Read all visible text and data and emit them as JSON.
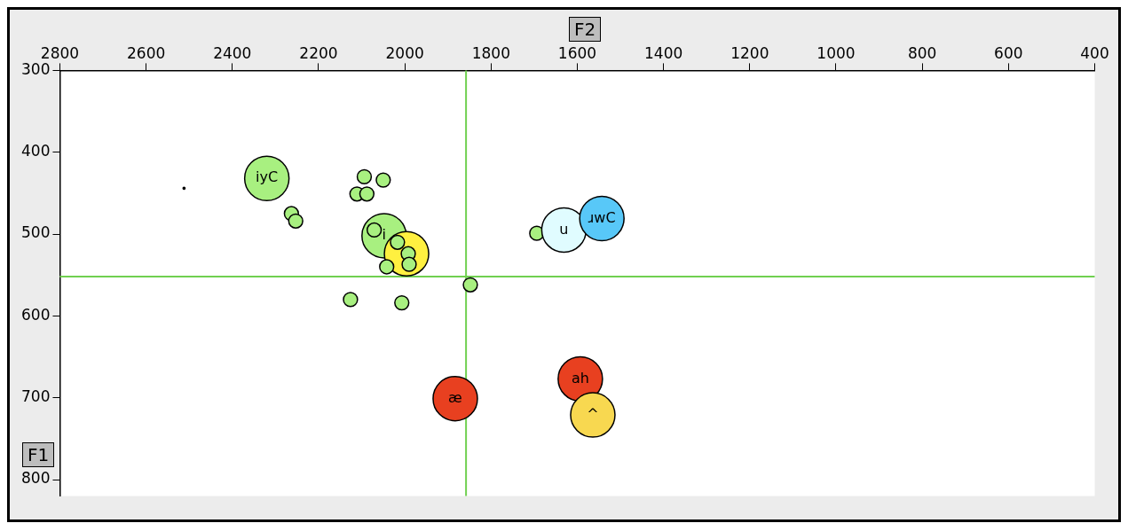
{
  "chart_data": {
    "type": "bubble",
    "xlabel": "F2",
    "ylabel": "F1",
    "x": [
      2512,
      2320,
      2048,
      1996,
      2094,
      2050,
      2111,
      2088,
      2263,
      2253,
      2071,
      2017,
      1992,
      1990,
      2042,
      2126,
      2007,
      1848,
      1694,
      1631,
      1543,
      1883,
      1593,
      1564
    ],
    "values": [
      444,
      432,
      502,
      524,
      430,
      434,
      451,
      451,
      475,
      484,
      495,
      510,
      524,
      537,
      540,
      580,
      584,
      562,
      499,
      495,
      481,
      701,
      677,
      721
    ],
    "sizes": [
      0.002,
      1,
      1,
      1,
      0.1,
      0.1,
      0.1,
      0.1,
      0.1,
      0.1,
      0.1,
      0.1,
      0.1,
      0.1,
      0.1,
      0.1,
      0.1,
      0.1,
      0.1,
      1,
      1,
      1,
      1,
      1
    ],
    "colors": [
      "#000000",
      "#a8f080",
      "#a8f080",
      "#fff040",
      "#a8f080",
      "#a8f080",
      "#a8f080",
      "#a8f080",
      "#a8f080",
      "#a8f080",
      "#a8f080",
      "#a8f080",
      "#a8f080",
      "#a8f080",
      "#a8f080",
      "#a8f080",
      "#a8f080",
      "#a8f080",
      "#a8f080",
      "#e0fcff",
      "#58c8f8",
      "#e84020",
      "#e84020",
      "#f8d850"
    ],
    "xlim": [
      2800,
      400
    ],
    "xticks": [
      2800,
      2600,
      2400,
      2200,
      2000,
      1800,
      1600,
      1400,
      1200,
      1000,
      800,
      600,
      400
    ],
    "ylim": [
      820,
      300
    ],
    "yticks": [
      300,
      400,
      500,
      600,
      700,
      800
    ],
    "ref_lines": [
      {
        "axis": "x",
        "value": 1858,
        "color": "#70d050"
      },
      {
        "axis": "y",
        "value": 552,
        "color": "#70d050"
      }
    ],
    "annotations": [
      {
        "text": "iyC",
        "x": 2320,
        "y": 432
      },
      {
        "text": "i",
        "x": 2048,
        "y": 502
      },
      {
        "text": "u",
        "x": 1631,
        "y": 495
      },
      {
        "text": "ɹwC",
        "x": 1543,
        "y": 481
      },
      {
        "text": "æ",
        "x": 1883,
        "y": 701
      },
      {
        "text": "ah",
        "x": 1593,
        "y": 677
      },
      {
        "text": "^",
        "x": 1564,
        "y": 721
      }
    ]
  }
}
